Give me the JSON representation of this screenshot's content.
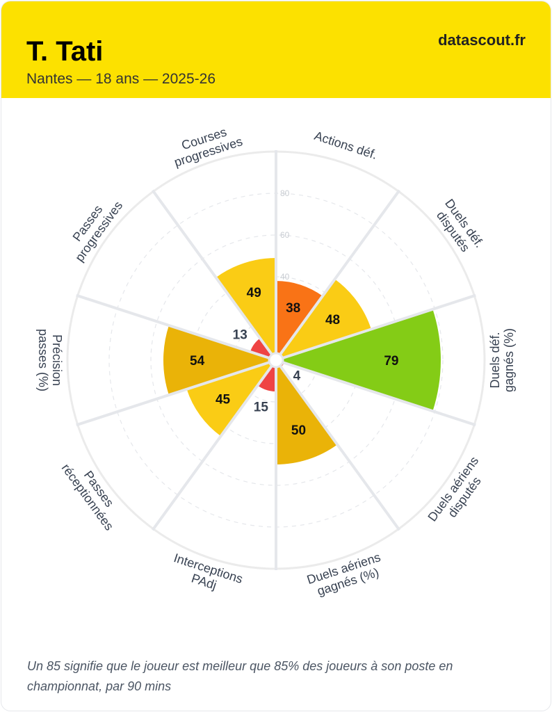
{
  "header": {
    "player": "T. Tati",
    "subtitle": "Nantes — 18 ans — 2025-26",
    "brand": "datascout.fr"
  },
  "chart_data": {
    "type": "pizza",
    "range": [
      0,
      100
    ],
    "gridlines": [
      20,
      40,
      60,
      80
    ],
    "tick_labels": [
      "40",
      "60",
      "80"
    ],
    "categories": [
      [
        "Actions déf."
      ],
      [
        "Duels déf.",
        "disputés"
      ],
      [
        "Duels déf.",
        "gagnés (%)"
      ],
      [
        "Duels aériens",
        "disputés"
      ],
      [
        "Duels aériens",
        "gagnés (%)"
      ],
      [
        "Interceptions",
        "PAdj"
      ],
      [
        "Passes",
        "réceptionnées"
      ],
      [
        "Précision",
        "passes (%)"
      ],
      [
        "Passes",
        "progressives"
      ],
      [
        "Courses",
        "progressives"
      ]
    ],
    "values": [
      38,
      48,
      79,
      4,
      50,
      15,
      45,
      54,
      13,
      49
    ],
    "colors": [
      "#f97316",
      "#facc15",
      "#84cc16",
      "#ef4444",
      "#eab308",
      "#ef4444",
      "#facc15",
      "#eab308",
      "#ef4444",
      "#facc15"
    ]
  },
  "footer": {
    "note": "Un 85 signifie que le joueur est meilleur que 85% des joueurs à son poste en championnat, par 90 mins"
  }
}
